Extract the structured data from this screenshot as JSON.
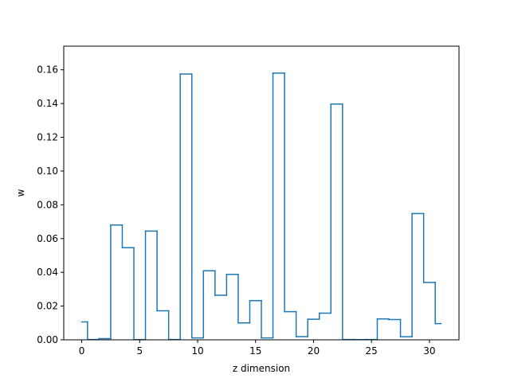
{
  "chart_data": {
    "type": "line",
    "drawstyle": "steps-mid",
    "xlabel": "z dimension",
    "ylabel": "w",
    "xlim": [
      -1.55,
      32.55
    ],
    "ylim": [
      0,
      0.174
    ],
    "xticks": [
      0,
      5,
      10,
      15,
      20,
      25,
      30
    ],
    "xtick_labels": [
      "0",
      "5",
      "10",
      "15",
      "20",
      "25",
      "30"
    ],
    "yticks": [
      0.0,
      0.02,
      0.04,
      0.06,
      0.08,
      0.1,
      0.12,
      0.14,
      0.16
    ],
    "ytick_labels": [
      "0.00",
      "0.02",
      "0.04",
      "0.06",
      "0.08",
      "0.10",
      "0.12",
      "0.14",
      "0.16"
    ],
    "grid": false,
    "series": [
      {
        "color": "#1f77b4",
        "x": [
          0,
          1,
          2,
          3,
          4,
          5,
          6,
          7,
          8,
          9,
          10,
          11,
          12,
          13,
          14,
          15,
          16,
          17,
          18,
          19,
          20,
          21,
          22,
          23,
          24,
          25,
          26,
          27,
          28,
          29,
          30,
          31
        ],
        "y": [
          0.0106,
          0.0002,
          0.0007,
          0.068,
          0.0546,
          0.0001,
          0.0644,
          0.0172,
          0.0002,
          0.1575,
          0.0011,
          0.0409,
          0.0264,
          0.0388,
          0.01,
          0.0232,
          0.0011,
          0.158,
          0.0167,
          0.0019,
          0.0122,
          0.0158,
          0.1397,
          0.0002,
          0.0001,
          0.0002,
          0.0124,
          0.012,
          0.0018,
          0.0748,
          0.034,
          0.0096
        ]
      }
    ]
  }
}
